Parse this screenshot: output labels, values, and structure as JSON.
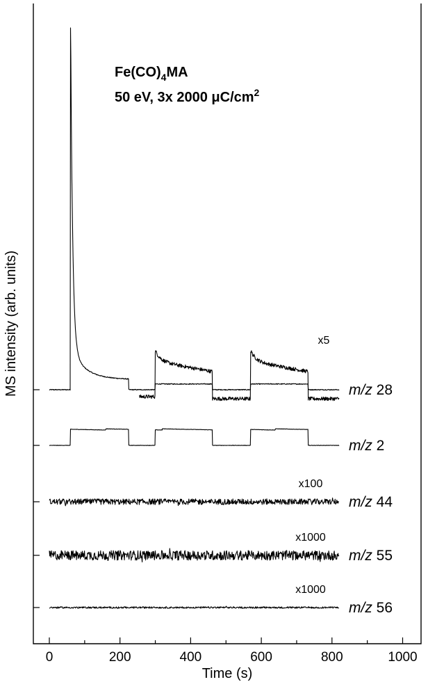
{
  "chart_data": {
    "type": "line",
    "title_line1": "Fe(CO)",
    "title_line1_sub": "4",
    "title_line1_end": "MA",
    "title_line2": "50 eV, 3x 2000 μC/cm",
    "title_line2_sup": "2",
    "xlabel": "Time (s)",
    "ylabel": "MS intensity (arb. units)",
    "xlim": [
      -40,
      1075
    ],
    "xticks": [
      0,
      200,
      400,
      600,
      800,
      1000
    ],
    "yticks": "unlabeled",
    "grid": false,
    "irradiation_windows_s": [
      [
        60,
        225
      ],
      [
        300,
        462
      ],
      [
        570,
        733
      ]
    ],
    "series": [
      {
        "name_italic": "m/z",
        "name_num": "28",
        "multiplier": "",
        "baseline": 0,
        "x_range": [
          0,
          820
        ],
        "features": {
          "initial_spike_peak": 100,
          "initial_spike_time_s": 60,
          "decay_level_at_225s": 3,
          "step_height": 1.6
        }
      },
      {
        "name_italic": "",
        "name_num": "",
        "multiplier": "x5",
        "baseline": 10,
        "x_range": [
          255,
          820
        ],
        "features": {
          "step_height": 11,
          "overshoot": 2.5,
          "decay": 2.5
        }
      },
      {
        "name_italic": "m/z",
        "name_num": "2",
        "multiplier": "",
        "baseline": 0,
        "x_range": [
          0,
          820
        ],
        "features": {
          "step_height": 3.5
        }
      },
      {
        "name_italic": "m/z",
        "name_num": "44",
        "multiplier": "x100",
        "baseline": 0,
        "x_range": [
          0,
          820
        ],
        "features": {
          "noise": 0.35
        }
      },
      {
        "name_italic": "m/z",
        "name_num": "55",
        "multiplier": "x1000",
        "baseline": 0,
        "x_range": [
          0,
          820
        ],
        "features": {
          "noise": 0.7
        }
      },
      {
        "name_italic": "m/z",
        "name_num": "56",
        "multiplier": "x1000",
        "baseline": 0,
        "x_range": [
          0,
          820
        ],
        "features": {
          "noise": 0.15
        }
      }
    ]
  }
}
